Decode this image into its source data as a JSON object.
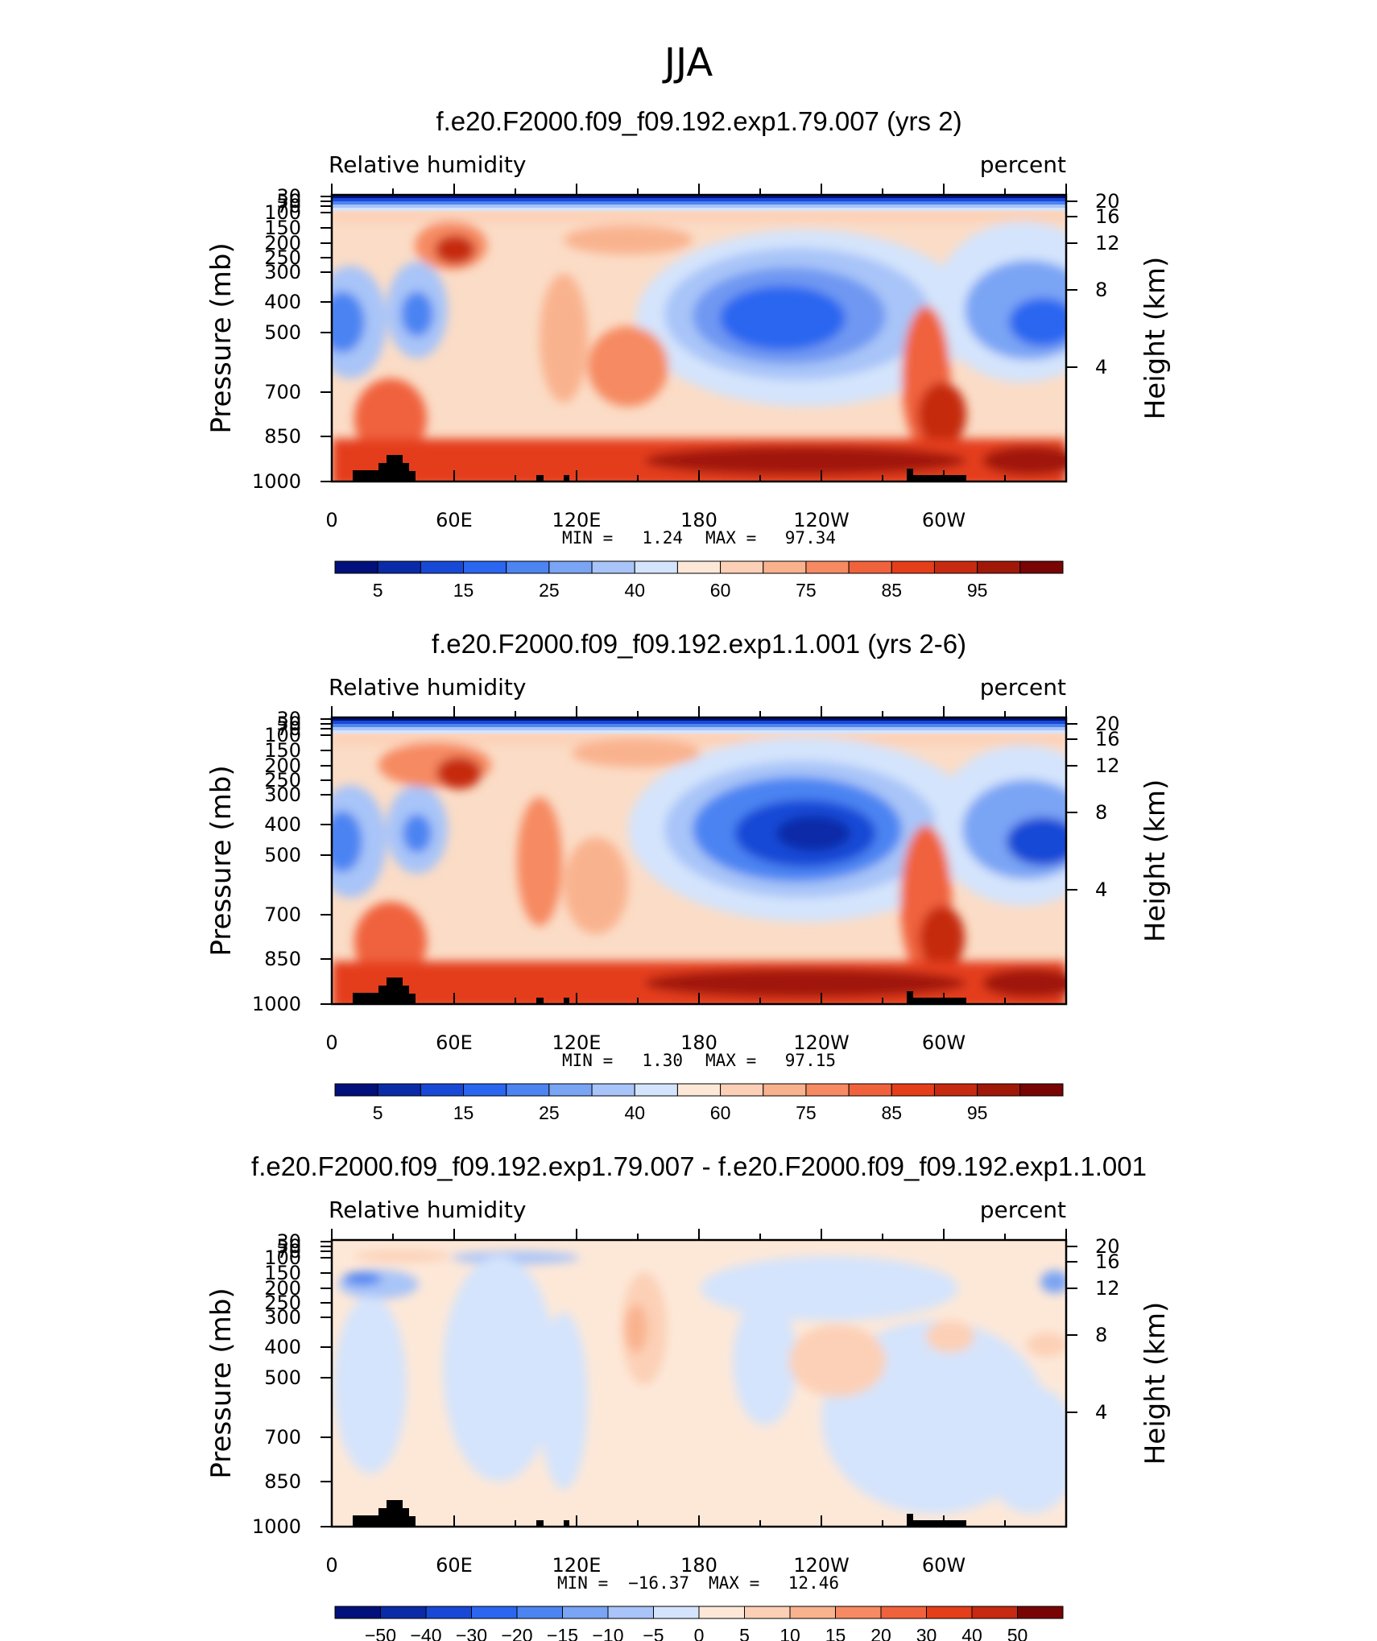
{
  "figure_title": "JJA",
  "chart_data": [
    {
      "type": "heatmap",
      "title": "f.e20.F2000.f09_f09.192.exp1.79.007 (yrs 2)",
      "variable_label": "Relative humidity",
      "units_label": "percent",
      "ylabel": "Pressure (mb)",
      "ylabel_right": "Height (km)",
      "x_ticks": [
        "0",
        "60E",
        "120E",
        "180",
        "120W",
        "60W"
      ],
      "y_ticks": [
        "30",
        "50",
        "70",
        "100",
        "150",
        "200",
        "250",
        "300",
        "400",
        "500",
        "700",
        "850",
        "1000"
      ],
      "y_ticks_right": [
        "20",
        "16",
        "12",
        "8",
        "4"
      ],
      "min_label": "MIN =",
      "min_value": "1.24",
      "max_label": "MAX =",
      "max_value": "97.34",
      "colorbar_labels": [
        "5",
        "15",
        "25",
        "40",
        "60",
        "75",
        "85",
        "95"
      ],
      "colorbar_colors": [
        "#01107a",
        "#0a2ba8",
        "#1849d6",
        "#2a66f0",
        "#4c84f2",
        "#7aa4f4",
        "#a8c4f8",
        "#d4e4fc",
        "#fde8d8",
        "#fcd0b6",
        "#f9b28e",
        "#f68a62",
        "#f0623c",
        "#e43e1a",
        "#c62a10",
        "#a01808",
        "#780404"
      ]
    },
    {
      "type": "heatmap",
      "title": "f.e20.F2000.f09_f09.192.exp1.1.001 (yrs 2-6)",
      "variable_label": "Relative humidity",
      "units_label": "percent",
      "ylabel": "Pressure (mb)",
      "ylabel_right": "Height (km)",
      "x_ticks": [
        "0",
        "60E",
        "120E",
        "180",
        "120W",
        "60W"
      ],
      "y_ticks": [
        "30",
        "50",
        "70",
        "100",
        "150",
        "200",
        "250",
        "300",
        "400",
        "500",
        "700",
        "850",
        "1000"
      ],
      "y_ticks_right": [
        "20",
        "16",
        "12",
        "8",
        "4"
      ],
      "min_label": "MIN =",
      "min_value": "1.30",
      "max_label": "MAX =",
      "max_value": "97.15",
      "colorbar_labels": [
        "5",
        "15",
        "25",
        "40",
        "60",
        "75",
        "85",
        "95"
      ],
      "colorbar_colors": [
        "#01107a",
        "#0a2ba8",
        "#1849d6",
        "#2a66f0",
        "#4c84f2",
        "#7aa4f4",
        "#a8c4f8",
        "#d4e4fc",
        "#fde8d8",
        "#fcd0b6",
        "#f9b28e",
        "#f68a62",
        "#f0623c",
        "#e43e1a",
        "#c62a10",
        "#a01808",
        "#780404"
      ]
    },
    {
      "type": "heatmap",
      "title": "f.e20.F2000.f09_f09.192.exp1.79.007 - f.e20.F2000.f09_f09.192.exp1.1.001",
      "variable_label": "Relative humidity",
      "units_label": "percent",
      "ylabel": "Pressure (mb)",
      "ylabel_right": "Height (km)",
      "x_ticks": [
        "0",
        "60E",
        "120E",
        "180",
        "120W",
        "60W"
      ],
      "y_ticks": [
        "30",
        "50",
        "70",
        "100",
        "150",
        "200",
        "250",
        "300",
        "400",
        "500",
        "700",
        "850",
        "1000"
      ],
      "y_ticks_right": [
        "20",
        "16",
        "12",
        "8",
        "4"
      ],
      "min_label": "MIN =",
      "min_value": "−16.37",
      "max_label": "MAX =",
      "max_value": "12.46",
      "colorbar_labels": [
        "−50",
        "−40",
        "−30",
        "−20",
        "−15",
        "−10",
        "−5",
        "0",
        "5",
        "10",
        "15",
        "20",
        "30",
        "40",
        "50"
      ],
      "colorbar_colors": [
        "#01107a",
        "#0a2ba8",
        "#1849d6",
        "#2a66f0",
        "#4c84f2",
        "#7aa4f4",
        "#a8c4f8",
        "#d4e4fc",
        "#fde8d8",
        "#fcd0b6",
        "#f9b28e",
        "#f68a62",
        "#f0623c",
        "#e43e1a",
        "#c62a10",
        "#780404"
      ]
    }
  ]
}
